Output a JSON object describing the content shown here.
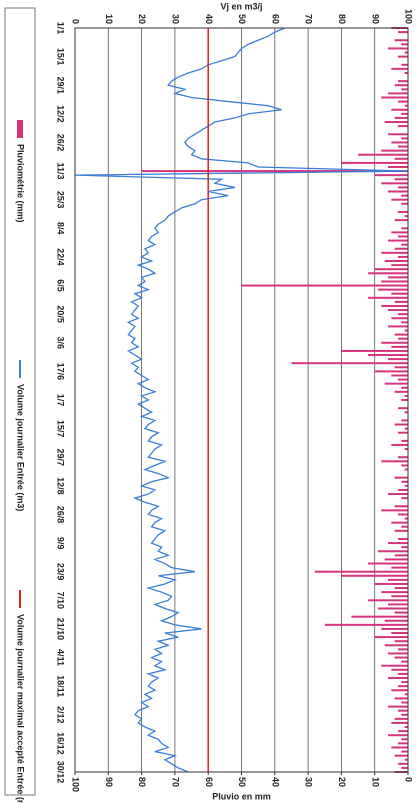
{
  "chart_data": {
    "type": "line",
    "ylabel": "Vj en m3/j",
    "y2label": "Pluvio en mm",
    "ylim": [
      0,
      100
    ],
    "yticks": [
      0,
      10,
      20,
      30,
      40,
      50,
      60,
      70,
      80,
      90,
      100
    ],
    "y2lim": [
      0,
      100
    ],
    "y2ticks": [
      0,
      10,
      20,
      30,
      40,
      50,
      60,
      70,
      80,
      90,
      100
    ],
    "y2_inverted": true,
    "grid": true,
    "legend": "bottom",
    "categories": [
      "1/1",
      null,
      null,
      null,
      null,
      null,
      null,
      "15/1",
      null,
      null,
      null,
      null,
      null,
      null,
      "29/1",
      null,
      null,
      null,
      null,
      null,
      null,
      "12/2",
      null,
      null,
      null,
      null,
      null,
      null,
      "26/2",
      null,
      null,
      null,
      null,
      null,
      null,
      "11/3",
      null,
      null,
      null,
      null,
      null,
      null,
      "25/3",
      null,
      null,
      null,
      null,
      null,
      null,
      "8/4",
      null,
      null,
      null,
      null,
      null,
      null,
      "22/4",
      null,
      null,
      null,
      null,
      null,
      null,
      "6/5",
      null,
      null,
      null,
      null,
      null,
      null,
      "20/5",
      null,
      null,
      null,
      null,
      null,
      null,
      "3/6",
      null,
      null,
      null,
      null,
      null,
      null,
      "17/6",
      null,
      null,
      null,
      null,
      null,
      null,
      "1/7",
      null,
      null,
      null,
      null,
      null,
      null,
      "15/7",
      null,
      null,
      null,
      null,
      null,
      null,
      "29/7",
      null,
      null,
      null,
      null,
      null,
      null,
      "12/8",
      null,
      null,
      null,
      null,
      null,
      null,
      "26/8",
      null,
      null,
      null,
      null,
      null,
      null,
      "9/9",
      null,
      null,
      null,
      null,
      null,
      null,
      "23/9",
      null,
      null,
      null,
      null,
      null,
      null,
      "7/10",
      null,
      null,
      null,
      null,
      null,
      null,
      "21/10",
      null,
      null,
      null,
      null,
      null,
      null,
      "4/11",
      null,
      null,
      null,
      null,
      null,
      null,
      "18/11",
      null,
      null,
      null,
      null,
      null,
      null,
      "2/12",
      null,
      null,
      null,
      null,
      null,
      null,
      "16/12",
      null,
      null,
      null,
      null,
      null,
      null,
      "30/12"
    ],
    "series": [
      {
        "name": "Pluviométrie (mm)",
        "type": "bar",
        "axis": "y2",
        "color": "#d6337f",
        "values": [
          5,
          3,
          0,
          4,
          2,
          6,
          1,
          3,
          0,
          2,
          5,
          1,
          0,
          3,
          4,
          2,
          6,
          8,
          3,
          1,
          5,
          2,
          4,
          7,
          3,
          0,
          6,
          2,
          5,
          3,
          8,
          15,
          4,
          20,
          6,
          80,
          10,
          4,
          8,
          3,
          6,
          2,
          5,
          2,
          0,
          3,
          1,
          4,
          0,
          2,
          5,
          3,
          6,
          2,
          4,
          8,
          3,
          7,
          5,
          10,
          12,
          6,
          8,
          50,
          9,
          5,
          12,
          4,
          8,
          6,
          3,
          5,
          2,
          6,
          1,
          4,
          3,
          8,
          5,
          20,
          12,
          6,
          35,
          4,
          10,
          5,
          3,
          7,
          2,
          4,
          1,
          2,
          0,
          3,
          1,
          0,
          2,
          4,
          1,
          3,
          0,
          2,
          5,
          1,
          0,
          3,
          8,
          2,
          1,
          0,
          4,
          2,
          1,
          3,
          6,
          2,
          0,
          4,
          8,
          3,
          1,
          5,
          2,
          4,
          0,
          3,
          6,
          2,
          9,
          4,
          7,
          12,
          5,
          28,
          20,
          6,
          10,
          4,
          8,
          5,
          12,
          6,
          9,
          4,
          17,
          7,
          25,
          8,
          5,
          10,
          4,
          7,
          3,
          6,
          4,
          2,
          8,
          5,
          3,
          6,
          2,
          3,
          5,
          1,
          4,
          2,
          6,
          3,
          2,
          4,
          5,
          1,
          3,
          6,
          2,
          3,
          5,
          2,
          4,
          1,
          3,
          2,
          4
        ]
      },
      {
        "name": "Volume journalier Entrée (m3)",
        "type": "line",
        "color": "#3b7dd8",
        "values": [
          63,
          60,
          58,
          55,
          52,
          50,
          49,
          48,
          44,
          40,
          38,
          34,
          31,
          29,
          28,
          33,
          30,
          35,
          46,
          58,
          62,
          52,
          48,
          42,
          40,
          38,
          36,
          34,
          33,
          34,
          36,
          35,
          38,
          52,
          55,
          100,
          0,
          44,
          42,
          48,
          40,
          46,
          38,
          36,
          32,
          30,
          28,
          27,
          25,
          24,
          25,
          23,
          22,
          24,
          21,
          22,
          20,
          23,
          19,
          22,
          24,
          20,
          21,
          19,
          22,
          18,
          20,
          17,
          19,
          18,
          17,
          19,
          16,
          18,
          17,
          16,
          18,
          17,
          19,
          16,
          18,
          20,
          17,
          19,
          18,
          20,
          22,
          19,
          21,
          24,
          20,
          22,
          19,
          21,
          23,
          20,
          24,
          22,
          21,
          25,
          23,
          22,
          26,
          24,
          23,
          22,
          27,
          24,
          21,
          25,
          28,
          23,
          20,
          24,
          22,
          18,
          21,
          25,
          23,
          22,
          26,
          24,
          23,
          27,
          25,
          24,
          23,
          26,
          25,
          28,
          24,
          27,
          29,
          36,
          25,
          30,
          27,
          22,
          26,
          29,
          28,
          24,
          27,
          31,
          29,
          26,
          30,
          38,
          27,
          31,
          25,
          28,
          24,
          26,
          23,
          26,
          24,
          27,
          22,
          25,
          23,
          22,
          24,
          21,
          23,
          20,
          22,
          19,
          18,
          20,
          19,
          21,
          24,
          22,
          25,
          26,
          28,
          24,
          30,
          27,
          29,
          31,
          34
        ]
      }
    ],
    "reference_line": {
      "name": "Volume journalier maximal accepté Entrée (m3)",
      "color": "#e0201b",
      "value": 40
    }
  }
}
